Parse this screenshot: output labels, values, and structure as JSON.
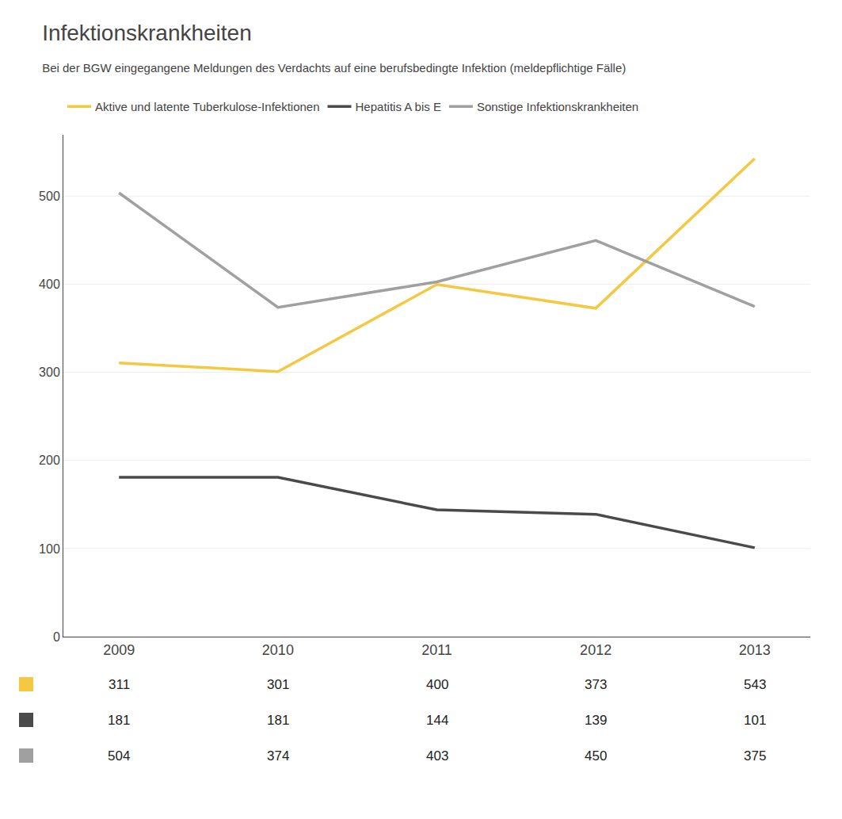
{
  "chart_data": {
    "type": "line",
    "title": "Infektionskrankheiten",
    "subtitle": "Bei der BGW eingegangene Meldungen des Verdachts auf eine berufsbedingte Infektion (meldepflichtige Fälle)",
    "categories": [
      "2009",
      "2010",
      "2011",
      "2012",
      "2013"
    ],
    "series": [
      {
        "name": "Aktive und latente Tuberkulose-Infektionen",
        "color": "#F5C842",
        "values": [
          311,
          301,
          400,
          373,
          543
        ]
      },
      {
        "name": "Hepatitis A bis E",
        "color": "#4A4A4A",
        "values": [
          181,
          181,
          144,
          139,
          101
        ]
      },
      {
        "name": "Sonstige Infektionskrankheiten",
        "color": "#A0A0A0",
        "values": [
          504,
          374,
          403,
          450,
          375
        ]
      }
    ],
    "ylim": [
      0,
      570
    ],
    "yticks": [
      0,
      100,
      200,
      300,
      400,
      500
    ],
    "grid": true,
    "data_labels": true
  }
}
